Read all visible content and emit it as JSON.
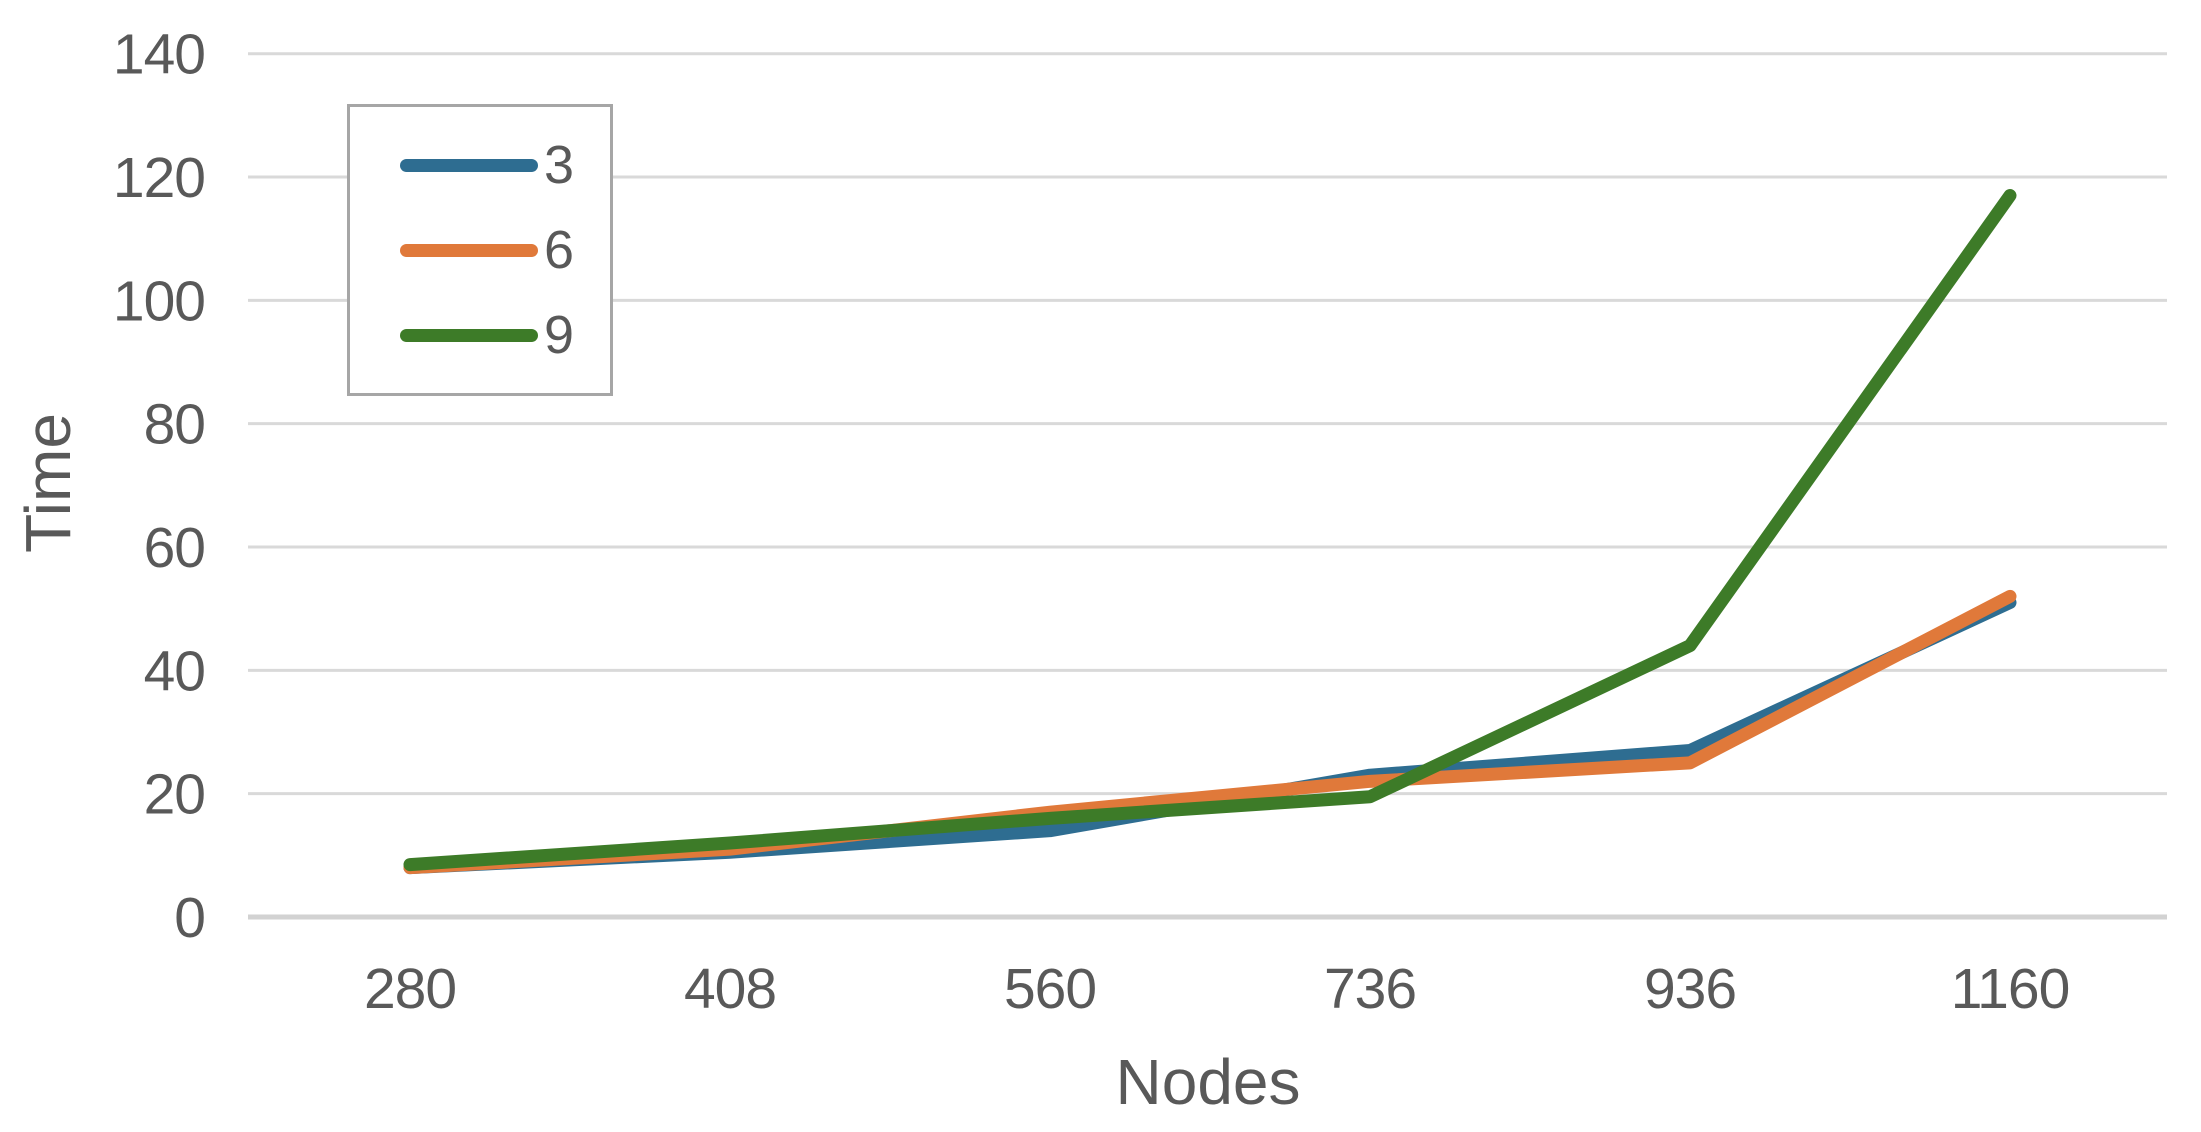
{
  "chart_data": {
    "type": "line",
    "title": "",
    "xlabel": "Nodes",
    "ylabel": "Time",
    "categories": [
      "280",
      "408",
      "560",
      "736",
      "936",
      "1160"
    ],
    "series": [
      {
        "name": "3",
        "color": "#2E6D91",
        "values": [
          8,
          10.5,
          14,
          23,
          27,
          51
        ]
      },
      {
        "name": "6",
        "color": "#E0793A",
        "values": [
          8,
          11,
          17,
          22,
          25,
          52
        ]
      },
      {
        "name": "9",
        "color": "#3D7B28",
        "values": [
          8.5,
          12,
          16,
          19.5,
          44,
          117
        ]
      }
    ],
    "y_ticks": [
      0,
      20,
      40,
      60,
      80,
      100,
      120,
      140
    ],
    "ylim": [
      0,
      140
    ],
    "grid": true,
    "legend_position": "upper-left"
  },
  "colors": {
    "gridline": "#D9D9D9",
    "axis_line": "#D2D2D2",
    "tick_text": "#595959",
    "legend_border": "#A6A6A6",
    "background": "#FFFFFF"
  }
}
